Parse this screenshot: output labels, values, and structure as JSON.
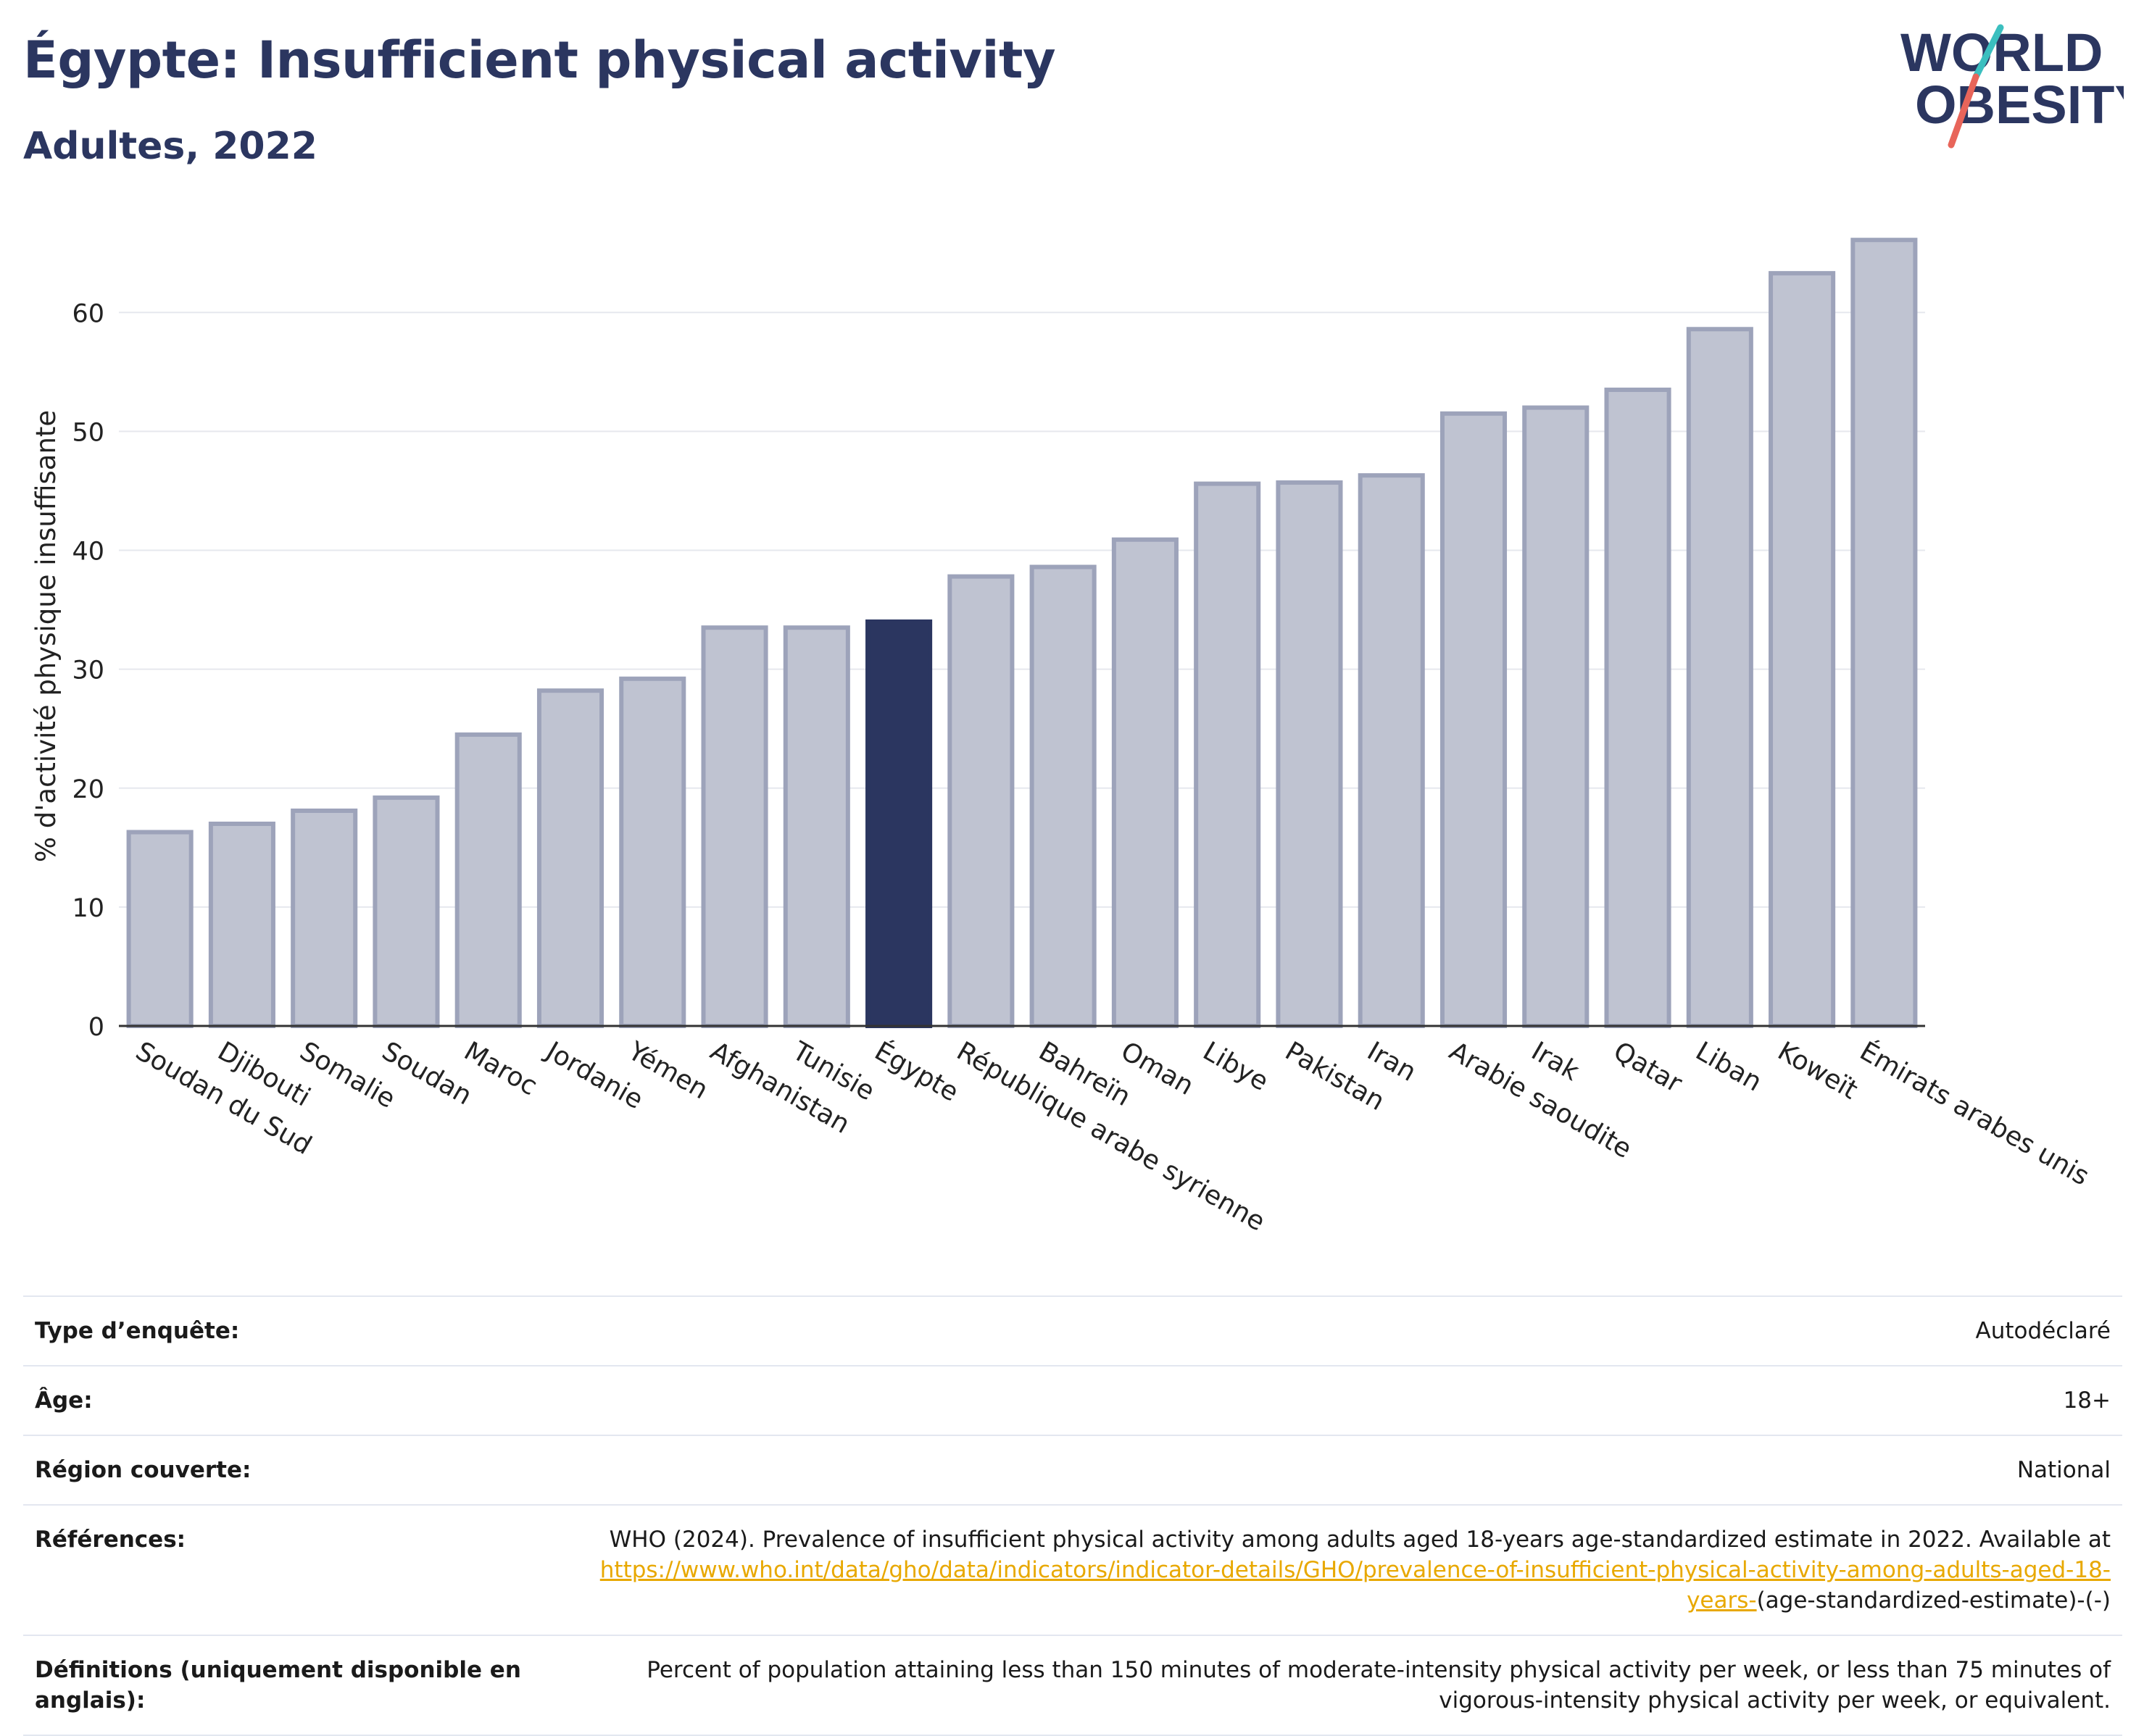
{
  "header": {
    "title": "Égypte: Insufficient physical activity",
    "subtitle": "Adultes, 2022"
  },
  "logo": {
    "line1": "WORLD",
    "line2": "OBESITY",
    "colors": {
      "text": "#2b3660",
      "slash_red": "#e8655a",
      "slash_teal": "#3bbfbf"
    }
  },
  "colors": {
    "bar": "#bfc3d1",
    "bar_border": "#9da3ba",
    "highlight": "#2b3660",
    "grid": "#e6e8ee",
    "axis": "#333333",
    "link": "#e8a800"
  },
  "chart_data": {
    "type": "bar",
    "ylabel": "% d'activité physique insuffisante",
    "ylim": [
      0,
      68
    ],
    "yticks": [
      0,
      10,
      20,
      30,
      40,
      50,
      60
    ],
    "grid": true,
    "highlight": "Égypte",
    "categories": [
      "Soudan du Sud",
      "Djibouti",
      "Somalie",
      "Soudan",
      "Maroc",
      "Jordanie",
      "Yémen",
      "Afghanistan",
      "Tunisie",
      "Égypte",
      "République arabe syrienne",
      "Bahreïn",
      "Oman",
      "Libye",
      "Pakistan",
      "Iran",
      "Arabie saoudite",
      "Irak",
      "Qatar",
      "Liban",
      "Koweït",
      "Émirats arabes unis"
    ],
    "values": [
      16.3,
      17.0,
      18.1,
      19.2,
      24.5,
      28.2,
      29.2,
      33.5,
      33.5,
      34.0,
      37.8,
      38.6,
      40.9,
      45.6,
      45.7,
      46.3,
      51.5,
      52.0,
      53.5,
      58.6,
      63.3,
      66.1
    ]
  },
  "info": {
    "survey_type": {
      "label": "Type d’enquête:",
      "value": "Autodéclaré"
    },
    "age": {
      "label": "Âge:",
      "value": "18+"
    },
    "region": {
      "label": "Région couverte:",
      "value": "National"
    },
    "references": {
      "label": "Références:",
      "text": "WHO (2024). Prevalence of insufficient physical activity among adults aged 18-years age-standardized estimate in 2022. Available at",
      "link": "https://www.who.int/data/gho/data/indicators/indicator-details/GHO/prevalence-of-insufficient-physical-activity-among-adults-aged-18-years-",
      "suffix": "(age-standardized-estimate)-(-)"
    },
    "definitions": {
      "label": "Définitions (uniquement disponible en anglais):",
      "value": "Percent of population attaining less than 150 minutes of moderate-intensity physical activity per week, or less than 75 minutes of vigorous-intensity physical activity per week, or equivalent."
    }
  }
}
